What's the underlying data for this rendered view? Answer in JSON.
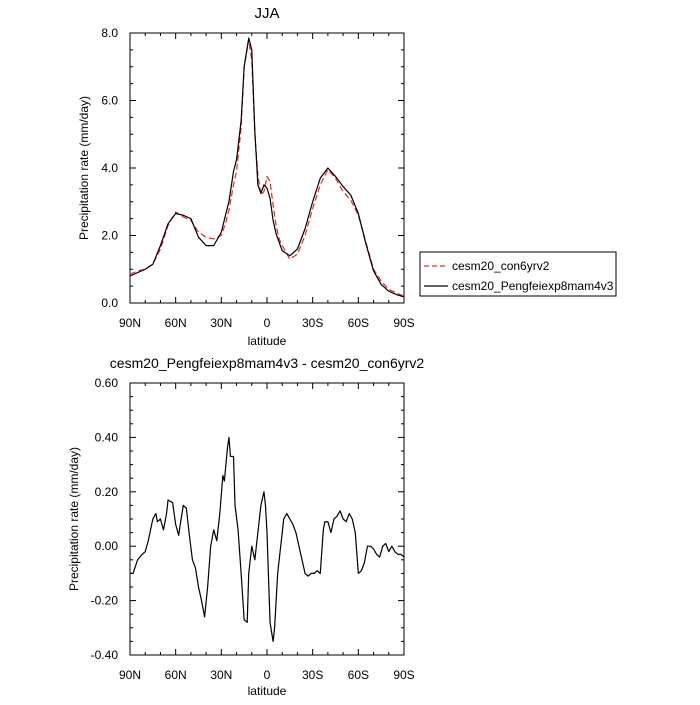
{
  "chart_data": [
    {
      "type": "line",
      "title": "JJA",
      "xlabel": "latitude",
      "ylabel": "Precipitation rate (mm/day)",
      "xlim": [
        90,
        -90
      ],
      "ylim": [
        0,
        8
      ],
      "xticks": [
        90,
        60,
        30,
        0,
        -30,
        -60,
        -90
      ],
      "xticklabels": [
        "90N",
        "60N",
        "30N",
        "0",
        "30S",
        "60S",
        "90S"
      ],
      "yticks": [
        0,
        2,
        4,
        6,
        8
      ],
      "yticklabels": [
        "0.0",
        "2.0",
        "4.0",
        "6.0",
        "8.0"
      ],
      "legend_position": "right",
      "series": [
        {
          "name": "cesm20_con6yrv2",
          "color": "#e8262b",
          "style": "dashed",
          "x": [
            90,
            85,
            80,
            75,
            70,
            65,
            60,
            55,
            50,
            45,
            40,
            35,
            30,
            27,
            25,
            22,
            20,
            17,
            15,
            12,
            10,
            8,
            6,
            4,
            2,
            0,
            -2,
            -4,
            -6,
            -8,
            -10,
            -15,
            -20,
            -25,
            -30,
            -35,
            -40,
            -45,
            -50,
            -55,
            -60,
            -65,
            -70,
            -75,
            -80,
            -85,
            -90
          ],
          "y": [
            0.85,
            0.95,
            1.0,
            1.15,
            1.6,
            2.3,
            2.7,
            2.55,
            2.45,
            2.1,
            1.95,
            1.9,
            2.0,
            2.4,
            2.75,
            3.5,
            3.9,
            5.2,
            7.0,
            7.8,
            7.2,
            5.0,
            3.8,
            3.2,
            3.3,
            3.75,
            3.6,
            2.9,
            2.3,
            1.9,
            1.7,
            1.3,
            1.45,
            2.0,
            2.8,
            3.5,
            3.95,
            3.7,
            3.3,
            3.05,
            2.6,
            1.8,
            1.0,
            0.65,
            0.4,
            0.3,
            0.2
          ]
        },
        {
          "name": "cesm20_Pengfeiexp8mam4v3",
          "color": "#000000",
          "style": "solid",
          "x": [
            90,
            85,
            80,
            75,
            70,
            65,
            60,
            55,
            50,
            45,
            40,
            35,
            30,
            27,
            25,
            22,
            20,
            17,
            15,
            12,
            10,
            8,
            6,
            4,
            2,
            0,
            -2,
            -4,
            -6,
            -8,
            -10,
            -15,
            -20,
            -25,
            -30,
            -35,
            -40,
            -45,
            -50,
            -55,
            -60,
            -65,
            -70,
            -75,
            -80,
            -85,
            -90
          ],
          "y": [
            0.8,
            0.9,
            1.0,
            1.15,
            1.7,
            2.35,
            2.65,
            2.6,
            2.5,
            1.95,
            1.7,
            1.7,
            2.1,
            2.65,
            3.0,
            3.9,
            4.25,
            5.4,
            7.0,
            7.85,
            7.5,
            5.1,
            3.5,
            3.25,
            3.5,
            3.4,
            3.1,
            2.45,
            2.05,
            1.8,
            1.55,
            1.4,
            1.6,
            2.2,
            3.0,
            3.7,
            4.0,
            3.75,
            3.45,
            3.2,
            2.65,
            1.75,
            0.95,
            0.55,
            0.35,
            0.25,
            0.18
          ]
        }
      ]
    },
    {
      "type": "line",
      "title": "cesm20_Pengfeiexp8mam4v3 - cesm20_con6yrv2",
      "xlabel": "latitude",
      "ylabel": "Precipitation rate (mm/day)",
      "xlim": [
        90,
        -90
      ],
      "ylim": [
        -0.4,
        0.6
      ],
      "xticks": [
        90,
        60,
        30,
        0,
        -30,
        -60,
        -90
      ],
      "xticklabels": [
        "90N",
        "60N",
        "30N",
        "0",
        "30S",
        "60S",
        "90S"
      ],
      "yticks": [
        -0.4,
        -0.2,
        0.0,
        0.2,
        0.4,
        0.6
      ],
      "yticklabels": [
        "-0.40",
        "-0.20",
        "0.00",
        "0.20",
        "0.40",
        "0.60"
      ],
      "series": [
        {
          "name": "cesm20_Pengfeiexp8mam4v3 - cesm20_con6yrv2",
          "color": "#000000",
          "style": "solid",
          "x": [
            90,
            88,
            85,
            82,
            80,
            78,
            75,
            73,
            72,
            70,
            68,
            66,
            65,
            62,
            60,
            58,
            57,
            55,
            53,
            51,
            49,
            47,
            45,
            43,
            41,
            39,
            37,
            35,
            33,
            31,
            29,
            28,
            26,
            25,
            24,
            22,
            21,
            19,
            17,
            15,
            13,
            12,
            10,
            8,
            6,
            4,
            2,
            1,
            0,
            -2,
            -4,
            -5,
            -7,
            -9,
            -11,
            -13,
            -15,
            -17,
            -19,
            -21,
            -23,
            -25,
            -27,
            -29,
            -31,
            -33,
            -35,
            -37,
            -38,
            -40,
            -42,
            -44,
            -46,
            -48,
            -50,
            -52,
            -54,
            -56,
            -58,
            -60,
            -62,
            -64,
            -66,
            -68,
            -70,
            -72,
            -74,
            -76,
            -78,
            -80,
            -82,
            -84,
            -86,
            -88,
            -90
          ],
          "y": [
            -0.1,
            -0.1,
            -0.05,
            -0.03,
            -0.02,
            0.02,
            0.1,
            0.12,
            0.09,
            0.1,
            0.06,
            0.12,
            0.17,
            0.16,
            0.08,
            0.04,
            0.08,
            0.15,
            0.14,
            0.04,
            -0.05,
            -0.08,
            -0.15,
            -0.2,
            -0.26,
            -0.15,
            0.0,
            0.06,
            0.02,
            0.12,
            0.26,
            0.24,
            0.36,
            0.4,
            0.33,
            0.33,
            0.15,
            0.06,
            -0.1,
            -0.27,
            -0.28,
            -0.1,
            0.0,
            -0.05,
            0.05,
            0.15,
            0.2,
            0.15,
            0.05,
            -0.28,
            -0.35,
            -0.3,
            -0.1,
            0.0,
            0.1,
            0.12,
            0.1,
            0.08,
            0.05,
            0.0,
            -0.05,
            -0.1,
            -0.11,
            -0.1,
            -0.1,
            -0.09,
            -0.1,
            0.06,
            0.09,
            0.09,
            0.05,
            0.1,
            0.11,
            0.13,
            0.1,
            0.09,
            0.12,
            0.1,
            0.05,
            -0.1,
            -0.09,
            -0.06,
            0.0,
            0.0,
            -0.01,
            -0.03,
            -0.04,
            0.0,
            0.01,
            -0.02,
            0.0,
            -0.02,
            -0.03,
            -0.03,
            -0.04
          ]
        }
      ]
    }
  ]
}
